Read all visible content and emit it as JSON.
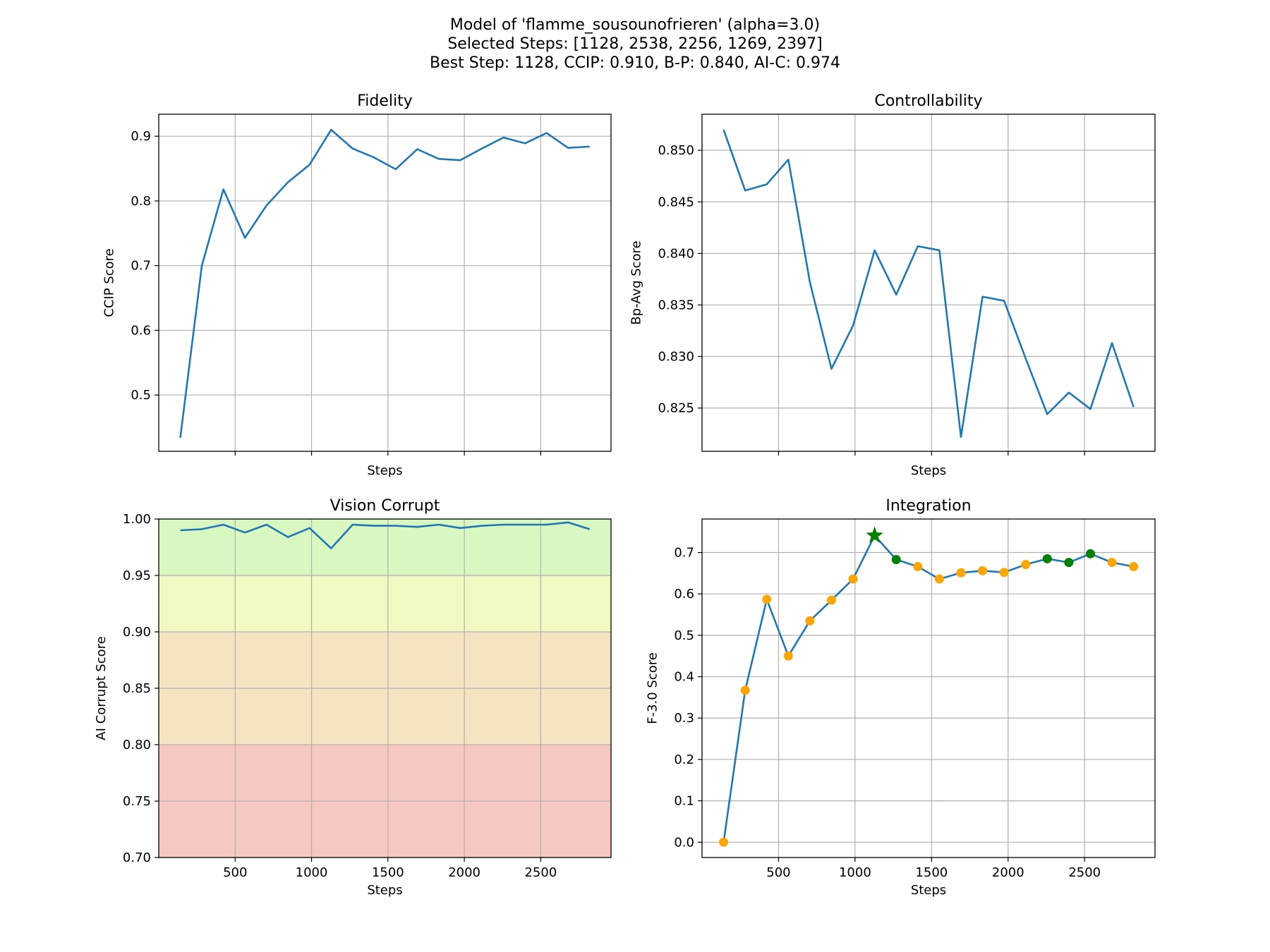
{
  "figure": {
    "title_lines": [
      "Model of 'flamme_sousounofrieren' (alpha=3.0)",
      "Selected Steps: [1128, 2538, 2256, 1269, 2397]",
      "Best Step: 1128, CCIP: 0.910, B-P: 0.840, AI-C: 0.974"
    ]
  },
  "colors": {
    "line": "#1f77b4",
    "grid": "#b0b0b0",
    "point": "#ffa500",
    "selected": "#008000",
    "band_excellent": "#d9f7c1",
    "band_good": "#f3f7c1",
    "band_fair": "#f6e3c1",
    "band_poor": "#f6c8c1"
  },
  "chart_data": [
    {
      "id": "fidelity",
      "type": "line",
      "title": "Fidelity",
      "xlabel": "Steps",
      "ylabel": "CCIP Score",
      "xlim": [
        0,
        2960
      ],
      "ylim": [
        0.413,
        0.934
      ],
      "xticks": [
        500,
        1000,
        1500,
        2000,
        2500
      ],
      "show_xticklabels": false,
      "yticks": [
        0.5,
        0.6,
        0.7,
        0.8,
        0.9
      ],
      "ytick_labels": [
        "0.5",
        "0.6",
        "0.7",
        "0.8",
        "0.9"
      ],
      "grid": true,
      "x": [
        141,
        282,
        423,
        564,
        705,
        846,
        987,
        1128,
        1269,
        1410,
        1551,
        1692,
        1833,
        1974,
        2115,
        2256,
        2397,
        2538,
        2679,
        2820
      ],
      "y": [
        0.434,
        0.7,
        0.818,
        0.743,
        0.793,
        0.829,
        0.856,
        0.91,
        0.881,
        0.867,
        0.849,
        0.88,
        0.865,
        0.863,
        0.881,
        0.898,
        0.889,
        0.905,
        0.882,
        0.884
      ]
    },
    {
      "id": "controllability",
      "type": "line",
      "title": "Controllability",
      "xlabel": "Steps",
      "ylabel": "Bp-Avg Score",
      "xlim": [
        0,
        2960
      ],
      "ylim": [
        0.8208,
        0.8535
      ],
      "xticks": [
        500,
        1000,
        1500,
        2000,
        2500
      ],
      "show_xticklabels": false,
      "yticks": [
        0.825,
        0.83,
        0.835,
        0.84,
        0.845,
        0.85
      ],
      "ytick_labels": [
        "0.825",
        "0.830",
        "0.835",
        "0.840",
        "0.845",
        "0.850"
      ],
      "grid": true,
      "x": [
        141,
        282,
        423,
        564,
        705,
        846,
        987,
        1128,
        1269,
        1410,
        1551,
        1692,
        1833,
        1974,
        2115,
        2256,
        2397,
        2538,
        2679,
        2820
      ],
      "y": [
        0.852,
        0.8461,
        0.8467,
        0.8491,
        0.8372,
        0.8288,
        0.833,
        0.8403,
        0.836,
        0.8407,
        0.8403,
        0.8222,
        0.8358,
        0.8354,
        0.8298,
        0.8244,
        0.8265,
        0.8249,
        0.8313,
        0.8251
      ]
    },
    {
      "id": "vision-corrupt",
      "type": "line",
      "title": "Vision Corrupt",
      "xlabel": "Steps",
      "ylabel": "AI Corrupt Score",
      "xlim": [
        0,
        2960
      ],
      "ylim": [
        0.7,
        1.0
      ],
      "xticks": [
        500,
        1000,
        1500,
        2000,
        2500
      ],
      "xtick_labels": [
        "500",
        "1000",
        "1500",
        "2000",
        "2500"
      ],
      "show_xticklabels": true,
      "yticks": [
        0.7,
        0.75,
        0.8,
        0.85,
        0.9,
        0.95,
        1.0
      ],
      "ytick_labels": [
        "0.70",
        "0.75",
        "0.80",
        "0.85",
        "0.90",
        "0.95",
        "1.00"
      ],
      "grid": true,
      "bands": [
        {
          "from": 0.95,
          "to": 1.0,
          "color_key": "band_excellent"
        },
        {
          "from": 0.9,
          "to": 0.95,
          "color_key": "band_good"
        },
        {
          "from": 0.8,
          "to": 0.9,
          "color_key": "band_fair"
        },
        {
          "from": 0.7,
          "to": 0.8,
          "color_key": "band_poor"
        }
      ],
      "x": [
        141,
        282,
        423,
        564,
        705,
        846,
        987,
        1128,
        1269,
        1410,
        1551,
        1692,
        1833,
        1974,
        2115,
        2256,
        2397,
        2538,
        2679,
        2820
      ],
      "y": [
        0.99,
        0.991,
        0.995,
        0.988,
        0.995,
        0.984,
        0.992,
        0.974,
        0.995,
        0.994,
        0.994,
        0.993,
        0.995,
        0.992,
        0.994,
        0.995,
        0.995,
        0.995,
        0.997,
        0.991
      ]
    },
    {
      "id": "integration",
      "type": "scatter",
      "title": "Integration",
      "xlabel": "Steps",
      "ylabel": "F-3.0 Score",
      "xlim": [
        0,
        2960
      ],
      "ylim": [
        -0.037,
        0.781
      ],
      "xticks": [
        500,
        1000,
        1500,
        2000,
        2500
      ],
      "xtick_labels": [
        "500",
        "1000",
        "1500",
        "2000",
        "2500"
      ],
      "show_xticklabels": true,
      "yticks": [
        0.0,
        0.1,
        0.2,
        0.3,
        0.4,
        0.5,
        0.6,
        0.7
      ],
      "ytick_labels": [
        "0.0",
        "0.1",
        "0.2",
        "0.3",
        "0.4",
        "0.5",
        "0.6",
        "0.7"
      ],
      "grid": true,
      "best_step": 1128,
      "selected_steps": [
        2538,
        2256,
        1269,
        2397
      ],
      "x": [
        141,
        282,
        423,
        564,
        705,
        846,
        987,
        1128,
        1269,
        1410,
        1551,
        1692,
        1833,
        1974,
        2115,
        2256,
        2397,
        2538,
        2679,
        2820
      ],
      "y": [
        0.0,
        0.367,
        0.587,
        0.45,
        0.535,
        0.585,
        0.636,
        0.741,
        0.683,
        0.666,
        0.636,
        0.651,
        0.656,
        0.652,
        0.671,
        0.685,
        0.676,
        0.697,
        0.676,
        0.666
      ]
    }
  ]
}
